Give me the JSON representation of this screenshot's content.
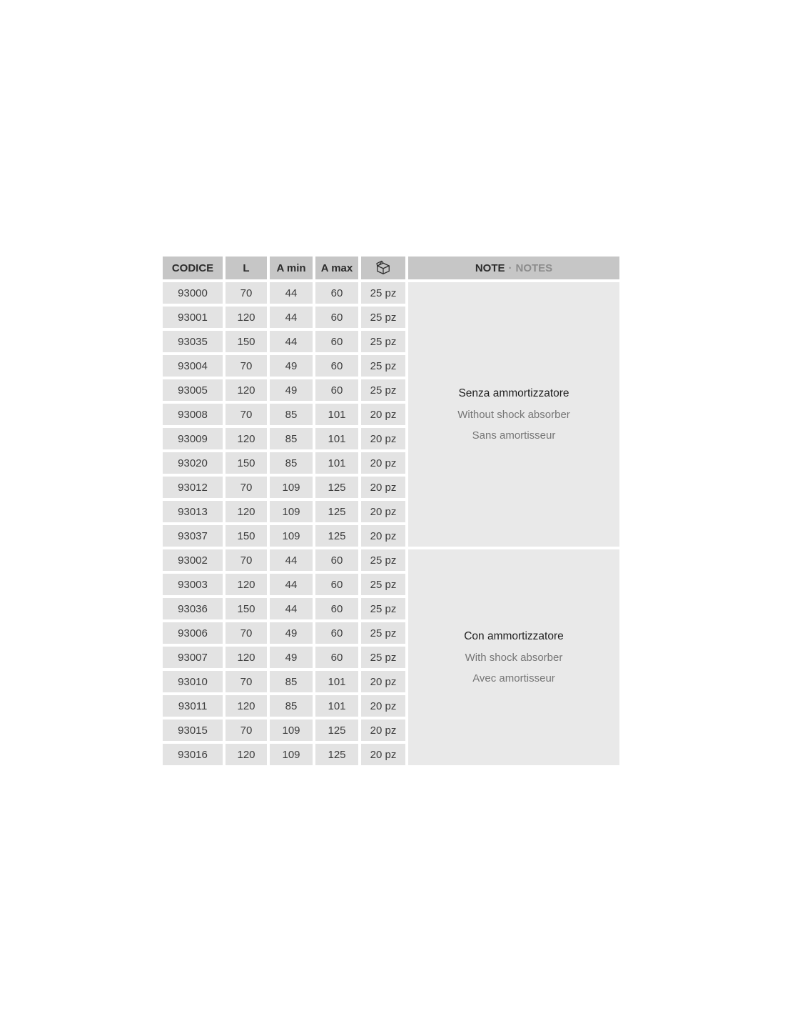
{
  "header": {
    "codice": "CODICE",
    "l": "L",
    "a_min": "A min",
    "a_max": "A max",
    "pack_icon": "package-icon",
    "note": "NOTE",
    "note_sep": "·",
    "notes": "NOTES"
  },
  "groups": [
    {
      "note_lines": [
        "Senza ammortizzatore",
        "Without shock absorber",
        "Sans amortisseur"
      ],
      "rows": [
        [
          "93000",
          "70",
          "44",
          "60",
          "25 pz"
        ],
        [
          "93001",
          "120",
          "44",
          "60",
          "25 pz"
        ],
        [
          "93035",
          "150",
          "44",
          "60",
          "25 pz"
        ],
        [
          "93004",
          "70",
          "49",
          "60",
          "25 pz"
        ],
        [
          "93005",
          "120",
          "49",
          "60",
          "25 pz"
        ],
        [
          "93008",
          "70",
          "85",
          "101",
          "20 pz"
        ],
        [
          "93009",
          "120",
          "85",
          "101",
          "20 pz"
        ],
        [
          "93020",
          "150",
          "85",
          "101",
          "20 pz"
        ],
        [
          "93012",
          "70",
          "109",
          "125",
          "20 pz"
        ],
        [
          "93013",
          "120",
          "109",
          "125",
          "20 pz"
        ],
        [
          "93037",
          "150",
          "109",
          "125",
          "20 pz"
        ]
      ]
    },
    {
      "note_lines": [
        "Con ammortizzatore",
        "With shock absorber",
        "Avec amortisseur"
      ],
      "rows": [
        [
          "93002",
          "70",
          "44",
          "60",
          "25 pz"
        ],
        [
          "93003",
          "120",
          "44",
          "60",
          "25 pz"
        ],
        [
          "93036",
          "150",
          "44",
          "60",
          "25 pz"
        ],
        [
          "93006",
          "70",
          "49",
          "60",
          "25 pz"
        ],
        [
          "93007",
          "120",
          "49",
          "60",
          "25 pz"
        ],
        [
          "93010",
          "70",
          "85",
          "101",
          "20 pz"
        ],
        [
          "93011",
          "120",
          "85",
          "101",
          "20 pz"
        ],
        [
          "93015",
          "70",
          "109",
          "125",
          "20 pz"
        ],
        [
          "93016",
          "120",
          "109",
          "125",
          "20 pz"
        ]
      ]
    }
  ],
  "colors": {
    "header_bg": "#c6c6c6",
    "cell_bg": "#e3e3e3",
    "note_bg": "#e9e9e9",
    "text_dark": "#2c2c2c",
    "text_cell": "#3d3d3d",
    "text_gray": "#8c8c8c",
    "note_primary": "#1e1e1e",
    "note_secondary": "#767676"
  }
}
